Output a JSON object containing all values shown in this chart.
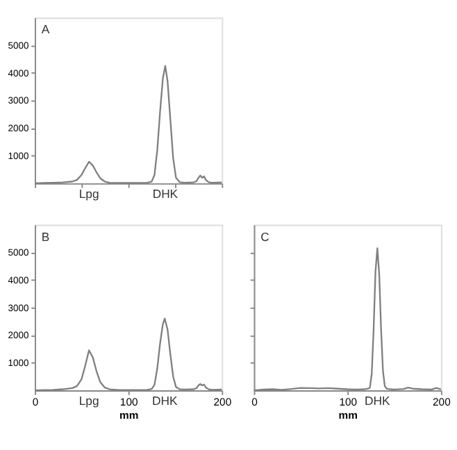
{
  "chart_data": [
    {
      "type": "line",
      "title": "A",
      "xlim": [
        0,
        200
      ],
      "xticks": [
        0,
        50,
        100,
        150,
        200
      ],
      "ylim": [
        0,
        6000
      ],
      "yticks": [
        1000,
        2000,
        3000,
        4000,
        5000
      ],
      "tick_labels": "y",
      "grid": false,
      "series": [
        {
          "color": "#7f7f7f",
          "x": [
            0,
            10,
            20,
            30,
            40,
            45,
            50,
            54,
            58,
            62,
            66,
            70,
            75,
            80,
            90,
            100,
            110,
            120,
            125,
            128,
            131,
            134,
            137,
            139.5,
            142,
            145,
            148,
            151,
            155,
            160,
            170,
            173,
            175,
            177,
            179,
            181,
            183,
            186,
            190,
            200
          ],
          "values": [
            0,
            10,
            20,
            30,
            60,
            120,
            300,
            550,
            780,
            650,
            400,
            180,
            60,
            20,
            10,
            10,
            10,
            20,
            60,
            300,
            1200,
            2600,
            3800,
            4250,
            3700,
            2300,
            900,
            200,
            40,
            20,
            30,
            80,
            200,
            280,
            200,
            250,
            120,
            40,
            20,
            30
          ]
        }
      ],
      "annotations": [
        "Lpg",
        "DHK"
      ]
    },
    {
      "type": "line",
      "title": "B",
      "xlabel": "mm",
      "xlim": [
        0,
        200
      ],
      "xticks": [
        0,
        100,
        200
      ],
      "ylim": [
        0,
        6000
      ],
      "yticks": [
        1000,
        2000,
        3000,
        4000,
        5000
      ],
      "grid": false,
      "series": [
        {
          "color": "#7f7f7f",
          "x": [
            0,
            10,
            20,
            30,
            40,
            45,
            50,
            54,
            58,
            62,
            66,
            70,
            75,
            80,
            90,
            100,
            110,
            120,
            125,
            128,
            131,
            134,
            137,
            139,
            142,
            145,
            148,
            151,
            155,
            160,
            170,
            173,
            175,
            177,
            179,
            181,
            183,
            186,
            190,
            200
          ],
          "values": [
            0,
            10,
            20,
            40,
            80,
            150,
            400,
            900,
            1450,
            1200,
            700,
            300,
            100,
            40,
            10,
            10,
            10,
            20,
            50,
            200,
            800,
            1700,
            2400,
            2600,
            2200,
            1300,
            500,
            120,
            40,
            30,
            40,
            80,
            180,
            230,
            180,
            210,
            100,
            40,
            20,
            30
          ]
        }
      ],
      "annotations": [
        "Lpg",
        "DHK"
      ]
    },
    {
      "type": "line",
      "title": "C",
      "xlabel": "mm",
      "xlim": [
        0,
        200
      ],
      "xticks": [
        0,
        100,
        200
      ],
      "ylim": [
        0,
        6000
      ],
      "yticks": [
        1000,
        2000,
        3000,
        4000,
        5000
      ],
      "tick_labels": "x",
      "grid": false,
      "series": [
        {
          "color": "#7f7f7f",
          "x": [
            0,
            10,
            20,
            30,
            40,
            50,
            60,
            70,
            80,
            90,
            100,
            110,
            118,
            122,
            124,
            126,
            128,
            130,
            132,
            134,
            136,
            138,
            140,
            142,
            146,
            150,
            160,
            165,
            170,
            180,
            190,
            195,
            200
          ],
          "values": [
            0,
            30,
            40,
            20,
            50,
            90,
            80,
            70,
            80,
            60,
            40,
            30,
            40,
            60,
            100,
            600,
            2200,
            4300,
            5150,
            4200,
            2200,
            700,
            150,
            60,
            40,
            30,
            50,
            100,
            60,
            40,
            30,
            90,
            40
          ]
        }
      ],
      "annotations": [
        "DHK"
      ]
    }
  ]
}
